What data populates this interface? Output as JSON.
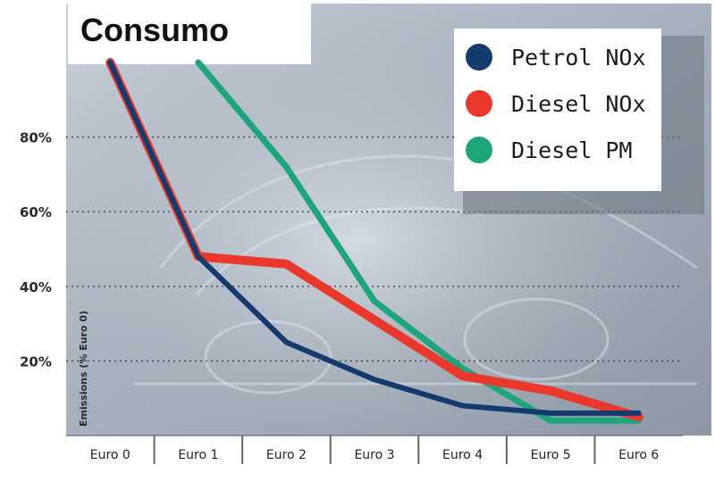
{
  "chart_data": {
    "type": "line",
    "title": "Consumo",
    "ylabel": "Emissions (% Euro 0)",
    "xlabel": "",
    "categories": [
      "Euro 0",
      "Euro 1",
      "Euro 2",
      "Euro 3",
      "Euro 4",
      "Euro 5",
      "Euro 6"
    ],
    "y_ticks": [
      "20%",
      "40%",
      "60%",
      "80%"
    ],
    "y_tick_values": [
      20,
      40,
      60,
      80
    ],
    "ylim": [
      0,
      100
    ],
    "grid": true,
    "legend_position": "top-right",
    "series": [
      {
        "name": "Petrol NOx",
        "color": "#143a6e",
        "values": [
          100,
          48,
          25,
          15,
          8,
          6,
          6
        ]
      },
      {
        "name": "Diesel NOx",
        "color": "#e8392c",
        "values": [
          100,
          48,
          46,
          31,
          16,
          12,
          5
        ]
      },
      {
        "name": "Diesel PM",
        "color": "#1fa57a",
        "values": [
          null,
          100,
          72,
          36,
          18,
          4,
          4
        ]
      }
    ]
  }
}
